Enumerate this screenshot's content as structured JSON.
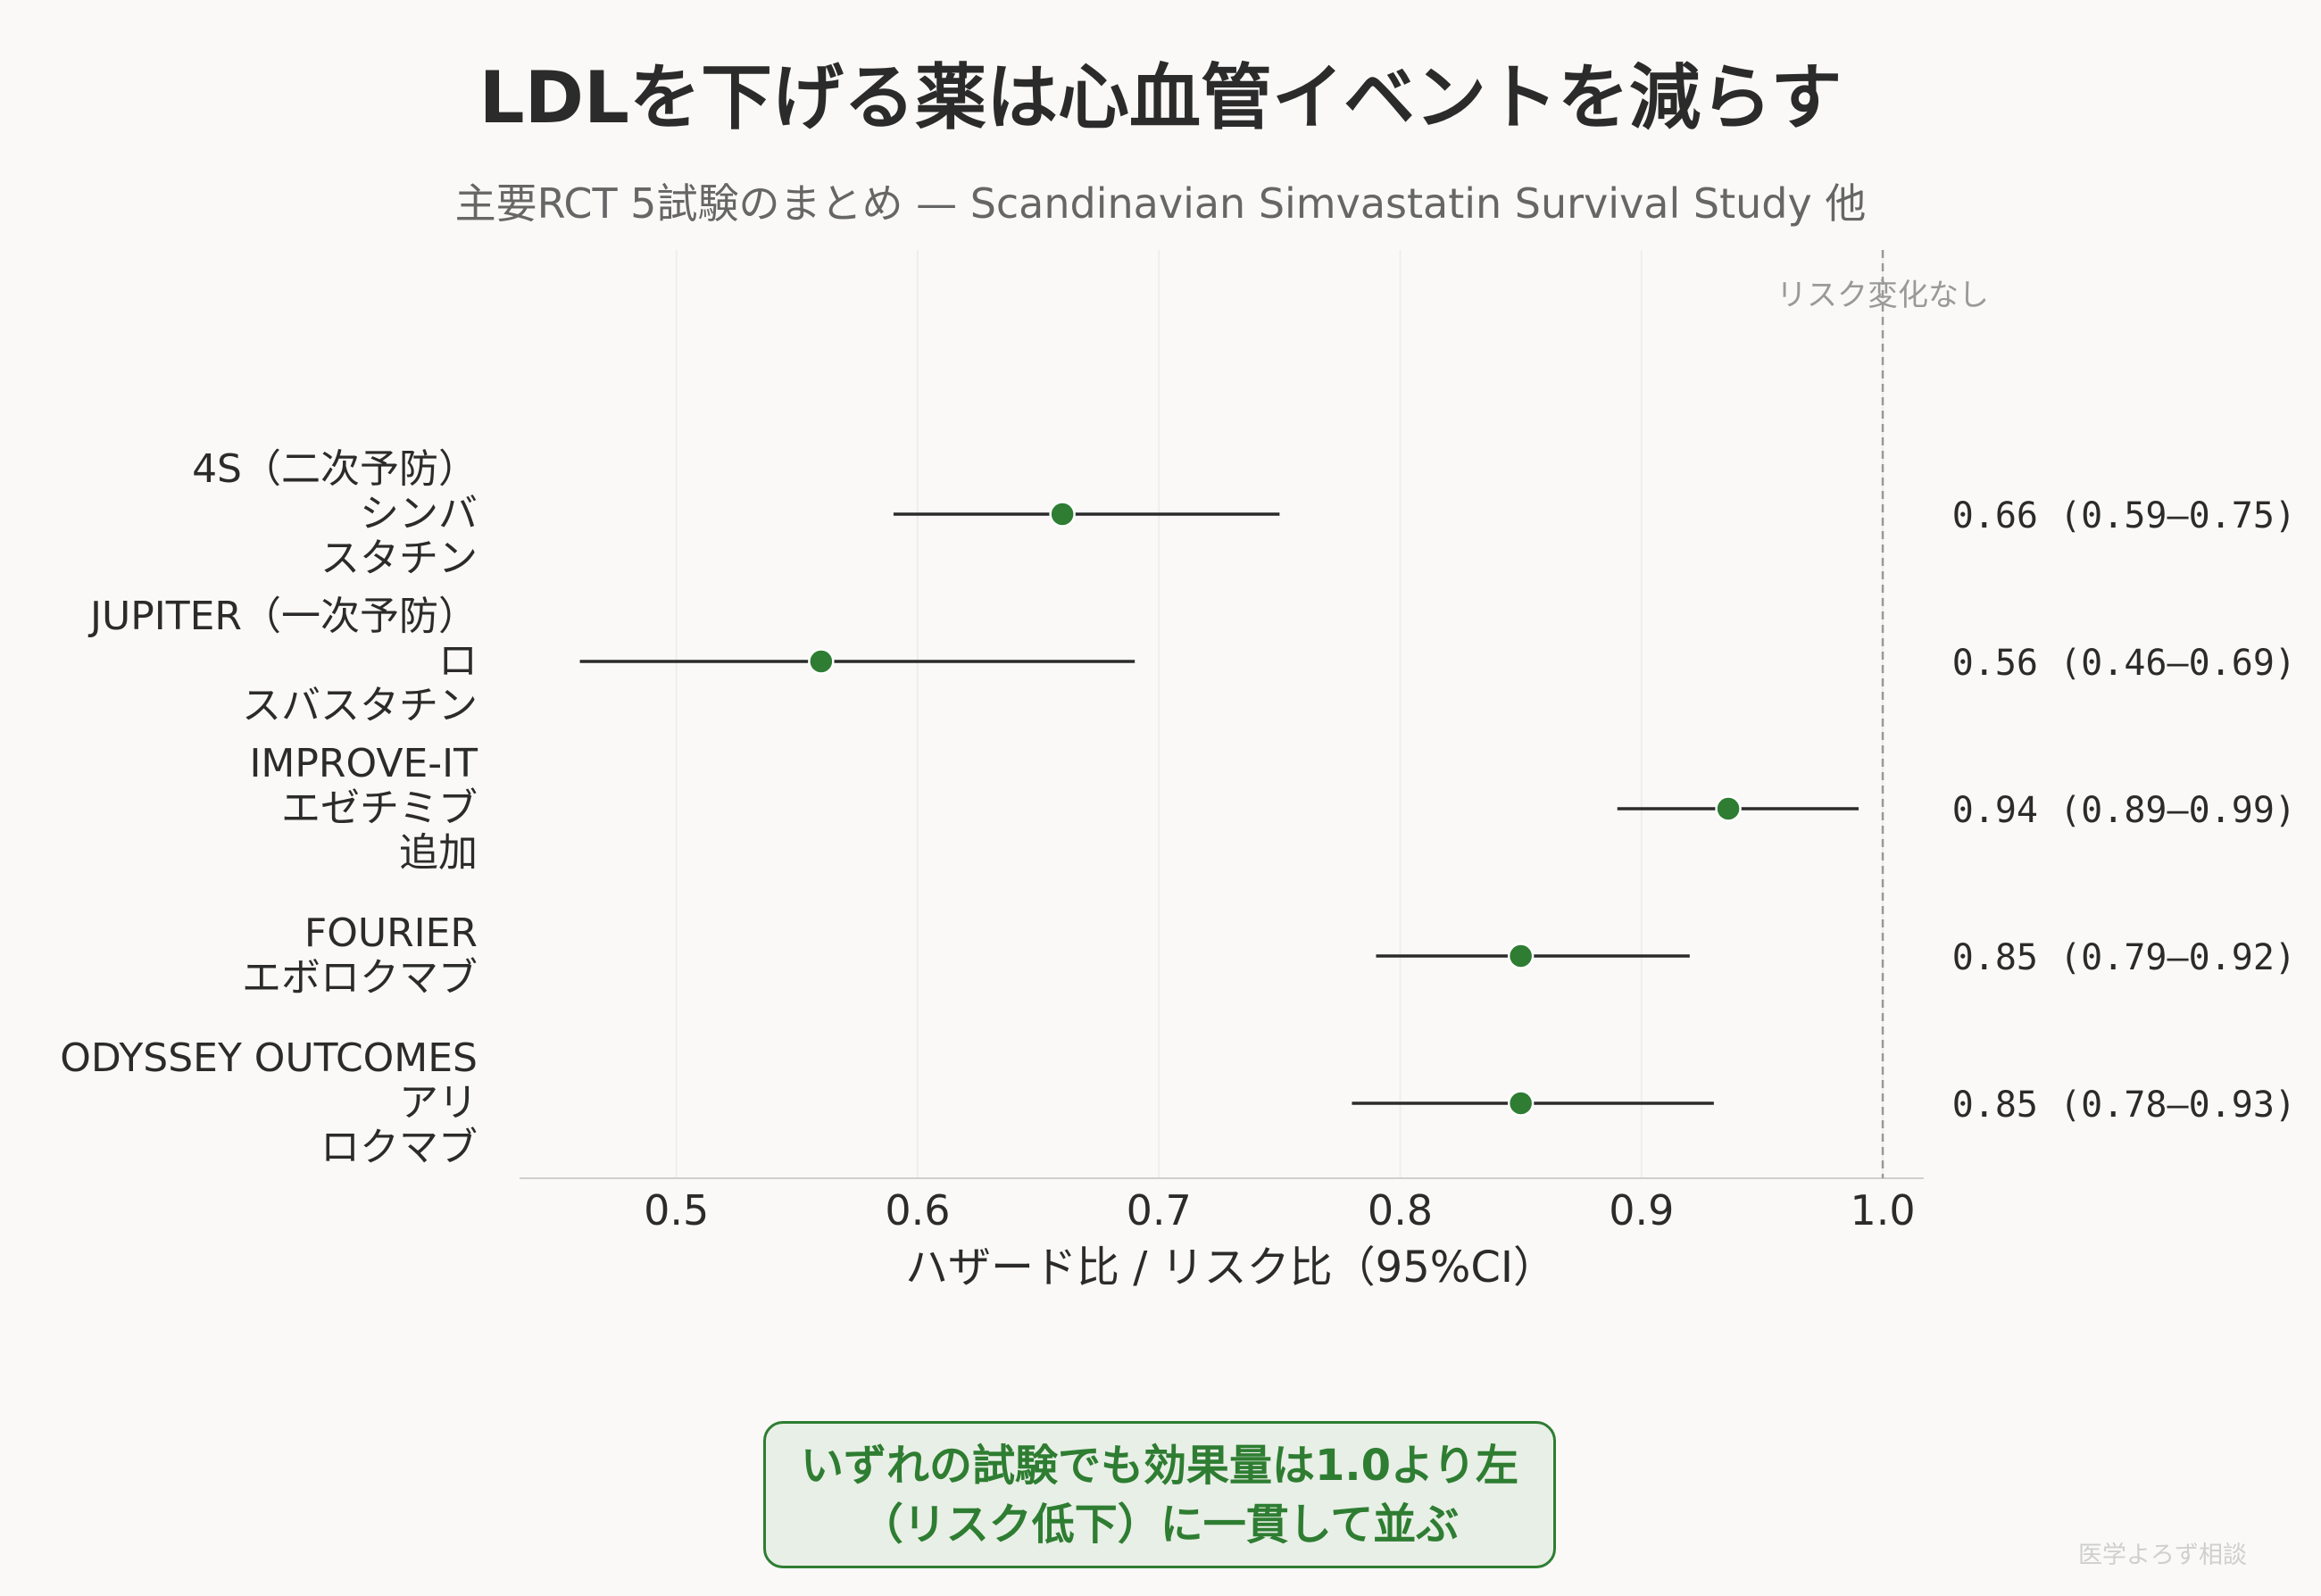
{
  "title": "LDLを下げる薬は心血管イベントを減らす",
  "subtitle": "主要RCT 5試験のまとめ — Scandinavian Simvastatin Survival Study 他",
  "callout": {
    "line1": "いずれの試験でも効果量は1.0より左",
    "line2": "（リスク低下）に一貫して並ぶ"
  },
  "watermark": "医学よろず相談",
  "colors": {
    "marker": "#2e7d32",
    "ci_line": "#2b2b2b",
    "refline": "#999999",
    "grid": "#eeeeee",
    "axis": "#cfcfcf"
  },
  "chart_data": {
    "type": "scatter",
    "subtype": "forest",
    "xlabel": "ハザード比 / リスク比（95%CI）",
    "xlim": [
      0.435,
      1.017
    ],
    "xticks": [
      "0.5",
      "0.6",
      "0.7",
      "0.8",
      "0.9",
      "1.0"
    ],
    "grid": "vertical",
    "reference_line": {
      "x": 1.0,
      "label": "リスク変化なし"
    },
    "studies": [
      {
        "label_lines": [
          "4S（二次予防）",
          "シンバ",
          "スタチン"
        ],
        "estimate": 0.66,
        "lower": 0.59,
        "upper": 0.75,
        "value_label": "0.66 (0.59–0.75)"
      },
      {
        "label_lines": [
          "JUPITER（一次予防）",
          "ロ",
          "スバスタチン"
        ],
        "estimate": 0.56,
        "lower": 0.46,
        "upper": 0.69,
        "value_label": "0.56 (0.46–0.69)"
      },
      {
        "label_lines": [
          "IMPROVE-IT",
          "エゼチミブ",
          "追加"
        ],
        "estimate": 0.936,
        "lower": 0.89,
        "upper": 0.99,
        "value_label": "0.94 (0.89–0.99)"
      },
      {
        "label_lines": [
          "FOURIER",
          "エボロクマブ"
        ],
        "estimate": 0.85,
        "lower": 0.79,
        "upper": 0.92,
        "value_label": "0.85 (0.79–0.92)"
      },
      {
        "label_lines": [
          "ODYSSEY OUTCOMES",
          "アリ",
          "ロクマブ"
        ],
        "estimate": 0.85,
        "lower": 0.78,
        "upper": 0.93,
        "value_label": "0.85 (0.78–0.93)"
      }
    ]
  }
}
